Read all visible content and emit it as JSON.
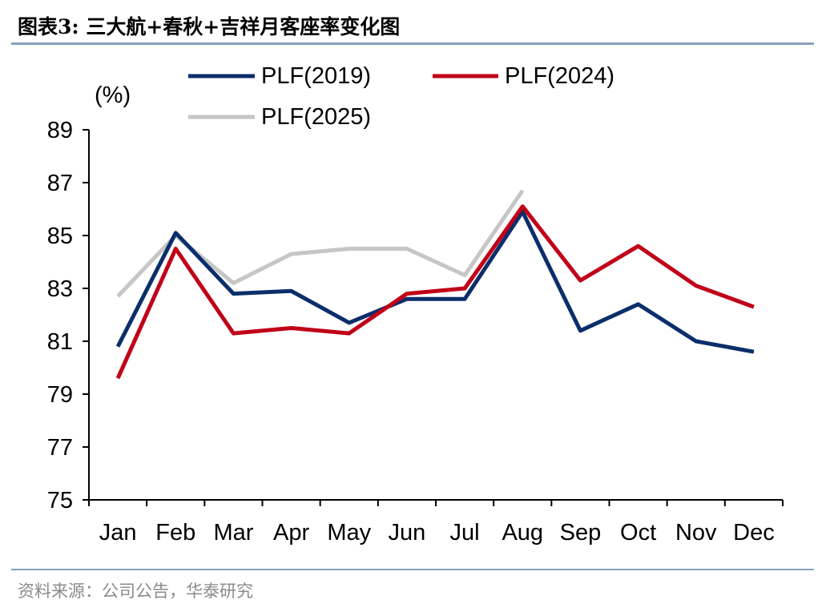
{
  "header": {
    "title": "图表3:  三大航+春秋+吉祥月客座率变化图"
  },
  "footer": {
    "source": "资料来源：公司公告，华泰研究"
  },
  "chart_data": {
    "type": "line",
    "title": "三大航+春秋+吉祥月客座率变化图",
    "ylabel": "(%)",
    "xlabel": "",
    "ylim": [
      75,
      89
    ],
    "yticks": [
      "75",
      "77",
      "79",
      "81",
      "83",
      "85",
      "87",
      "89"
    ],
    "categories": [
      "Jan",
      "Feb",
      "Mar",
      "Apr",
      "May",
      "Jun",
      "Jul",
      "Aug",
      "Sep",
      "Oct",
      "Nov",
      "Dec"
    ],
    "legend_position": "top",
    "grid": false,
    "series": [
      {
        "name": "PLF(2019)",
        "color": "#0b2e6b",
        "values": [
          80.8,
          85.1,
          82.8,
          82.9,
          81.7,
          82.6,
          82.6,
          85.9,
          81.4,
          82.4,
          81.0,
          80.6
        ]
      },
      {
        "name": "PLF(2024)",
        "color": "#c00018",
        "values": [
          79.6,
          84.5,
          81.3,
          81.5,
          81.3,
          82.8,
          83.0,
          86.1,
          83.3,
          84.6,
          83.1,
          82.3
        ]
      },
      {
        "name": "PLF(2025)",
        "color": "#c6c6c6",
        "values": [
          82.7,
          85.0,
          83.2,
          84.3,
          84.5,
          84.5,
          83.5,
          86.7,
          null,
          null,
          null,
          null
        ]
      }
    ]
  }
}
